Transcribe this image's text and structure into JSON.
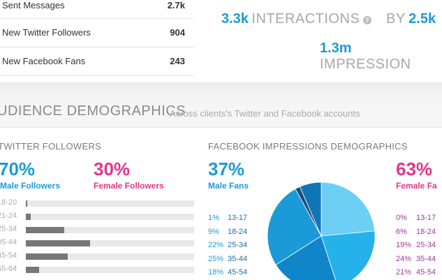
{
  "stats": [
    {
      "label": "Sent Messages",
      "value": "2.7k"
    },
    {
      "label": "New Twitter Followers",
      "value": "904"
    },
    {
      "label": "New Facebook Fans",
      "value": "243"
    }
  ],
  "summary": {
    "interactions_value": "3.3k",
    "interactions_label": "INTERACTIONS",
    "help_icon": "?",
    "by_label": "BY",
    "by_value": "2.5k",
    "impressions_value": "1.3m",
    "impressions_label": "IMPRESSION"
  },
  "demographics": {
    "title": "UDIENCE DEMOGRAPHICS",
    "subtitle": "Across clients's Twitter and Facebook accounts"
  },
  "twitter": {
    "heading": "TWITTER FOLLOWERS",
    "male_pct": "70%",
    "male_label": "Male Followers",
    "female_pct": "30%",
    "female_label": "Female Followers",
    "ages": [
      {
        "label": "18-20",
        "share": 0.01
      },
      {
        "label": "21-24",
        "share": 0.03
      },
      {
        "label": "25-34",
        "share": 0.23
      },
      {
        "label": "35-44",
        "share": 0.38
      },
      {
        "label": "45-54",
        "share": 0.25
      },
      {
        "label": "55-64",
        "share": 0.08
      }
    ]
  },
  "facebook": {
    "heading": "FACEBOOK IMPRESSIONS DEMOGRAPHICS",
    "male_pct": "37%",
    "male_label": "Male Fans",
    "female_pct": "63%",
    "female_label": "Female Fa",
    "male_ages": [
      {
        "pct": "1%",
        "label": "13-17"
      },
      {
        "pct": "9%",
        "label": "18-24"
      },
      {
        "pct": "22%",
        "label": "25-34"
      },
      {
        "pct": "25%",
        "label": "35-44"
      },
      {
        "pct": "18%",
        "label": "45-54"
      }
    ],
    "female_ages": [
      {
        "pct": "0%",
        "label": "13-17"
      },
      {
        "pct": "6%",
        "label": "18-24"
      },
      {
        "pct": "19%",
        "label": "25-34"
      },
      {
        "pct": "24%",
        "label": "35-44"
      },
      {
        "pct": "21%",
        "label": "45-54"
      }
    ],
    "pie": [
      {
        "value": 0.235,
        "color": "#6ccff3"
      },
      {
        "value": 0.215,
        "color": "#25b2ea"
      },
      {
        "value": 0.21,
        "color": "#0f86c9"
      },
      {
        "value": 0.26,
        "color": "#1a9ad6"
      },
      {
        "value": 0.015,
        "color": "#1b4f7a"
      },
      {
        "value": 0.065,
        "color": "#0f76b5"
      }
    ]
  },
  "colors": {
    "accent_blue": "#1d9bd7",
    "accent_pink": "#e3358a",
    "female_list": "#9b3aa0"
  }
}
